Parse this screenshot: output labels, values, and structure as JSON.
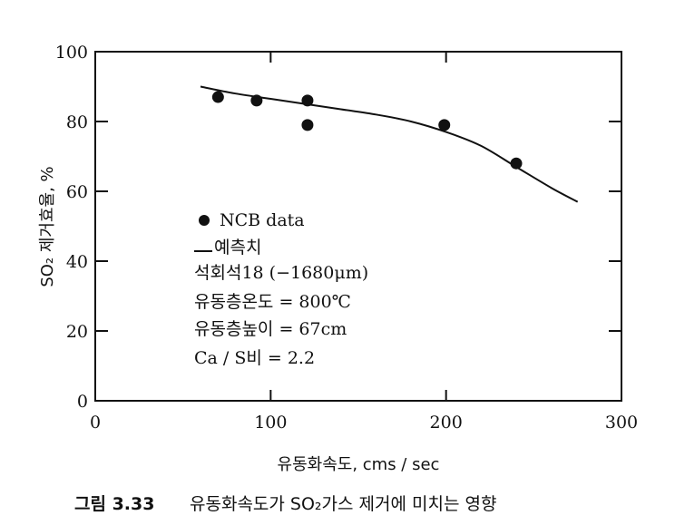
{
  "chart_data": {
    "type": "scatter",
    "xlabel": "유동화속도, cms / sec",
    "ylabel": "SO₂ 제거효율, %",
    "xlim": [
      0,
      300
    ],
    "ylim": [
      0,
      100
    ],
    "x_ticks": [
      "0",
      "100",
      "200",
      "300"
    ],
    "y_ticks": [
      "0",
      "20",
      "40",
      "60",
      "80",
      "100"
    ],
    "grid": false,
    "series": [
      {
        "name": "NCB data",
        "kind": "points",
        "x": [
          70,
          92,
          121,
          121,
          199,
          240
        ],
        "y": [
          87,
          86,
          86,
          79,
          79,
          68
        ]
      },
      {
        "name": "예측치",
        "kind": "line",
        "x": [
          60,
          80,
          100,
          120,
          140,
          160,
          180,
          200,
          220,
          240,
          260,
          275
        ],
        "y": [
          90,
          88,
          86.5,
          85,
          83.5,
          82,
          80,
          77,
          73,
          67,
          61,
          57
        ]
      }
    ],
    "legend": {
      "placement": "center-left",
      "marker_label": "NCB data",
      "line_label": "예측치",
      "conditions": [
        "석회석18 (−1680μm)",
        "유동층온도 = 800℃",
        "유동층높이 = 67cm",
        "Ca / S비 = 2.2"
      ]
    },
    "caption_number": "그림 3.33",
    "caption_text": "유동화속도가 SO₂가스 제거에 미치는 영향"
  }
}
